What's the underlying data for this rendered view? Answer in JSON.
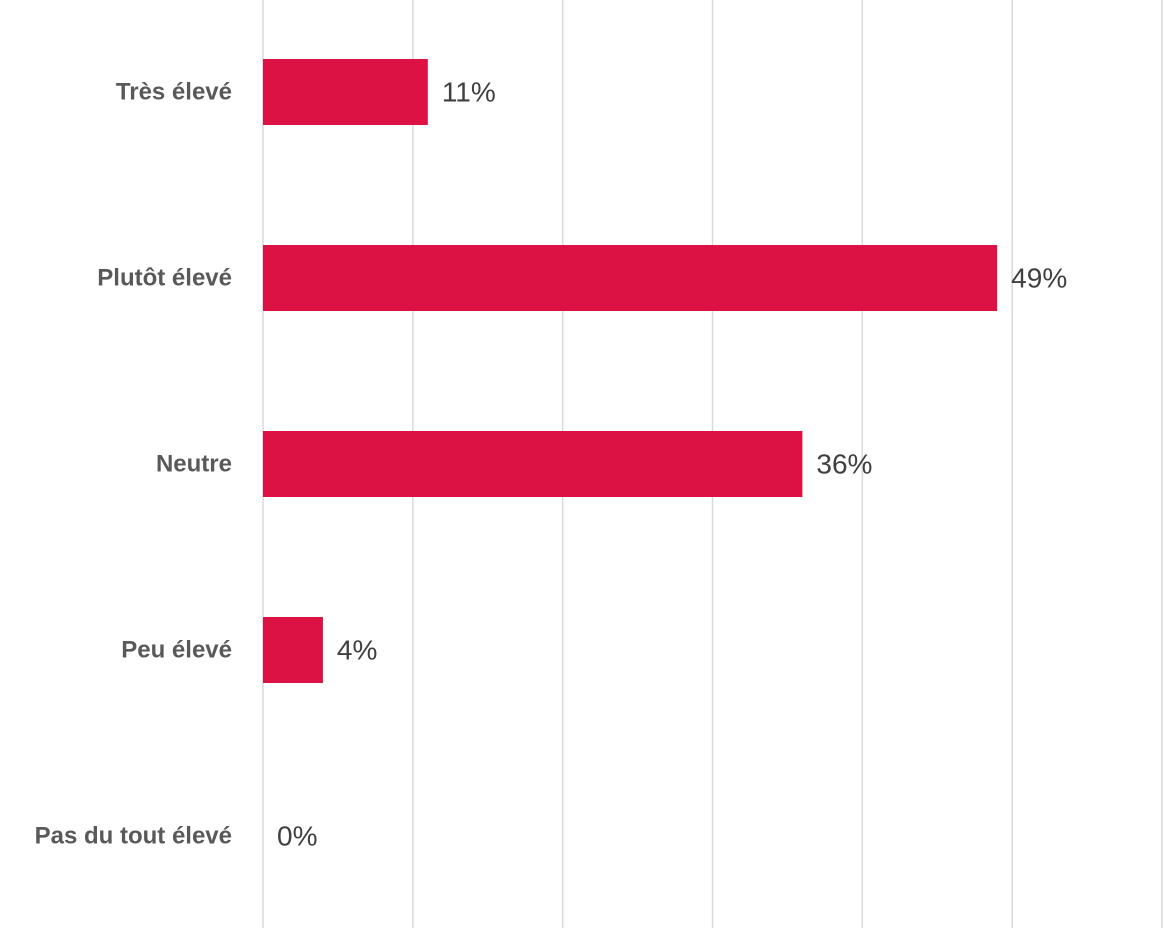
{
  "chart_data": {
    "type": "bar",
    "orientation": "horizontal",
    "categories": [
      "Très élevé",
      "Plutôt élevé",
      "Neutre",
      "Peu élevé",
      "Pas du tout élevé"
    ],
    "values": [
      11,
      49,
      36,
      4,
      0
    ],
    "value_labels": [
      "11%",
      "49%",
      "36%",
      "4%",
      "0%"
    ],
    "title": "",
    "xlabel": "",
    "ylabel": "",
    "xlim": [
      0,
      60
    ],
    "grid": "vertical",
    "legend": "none",
    "bar_color": "#dc1245"
  }
}
